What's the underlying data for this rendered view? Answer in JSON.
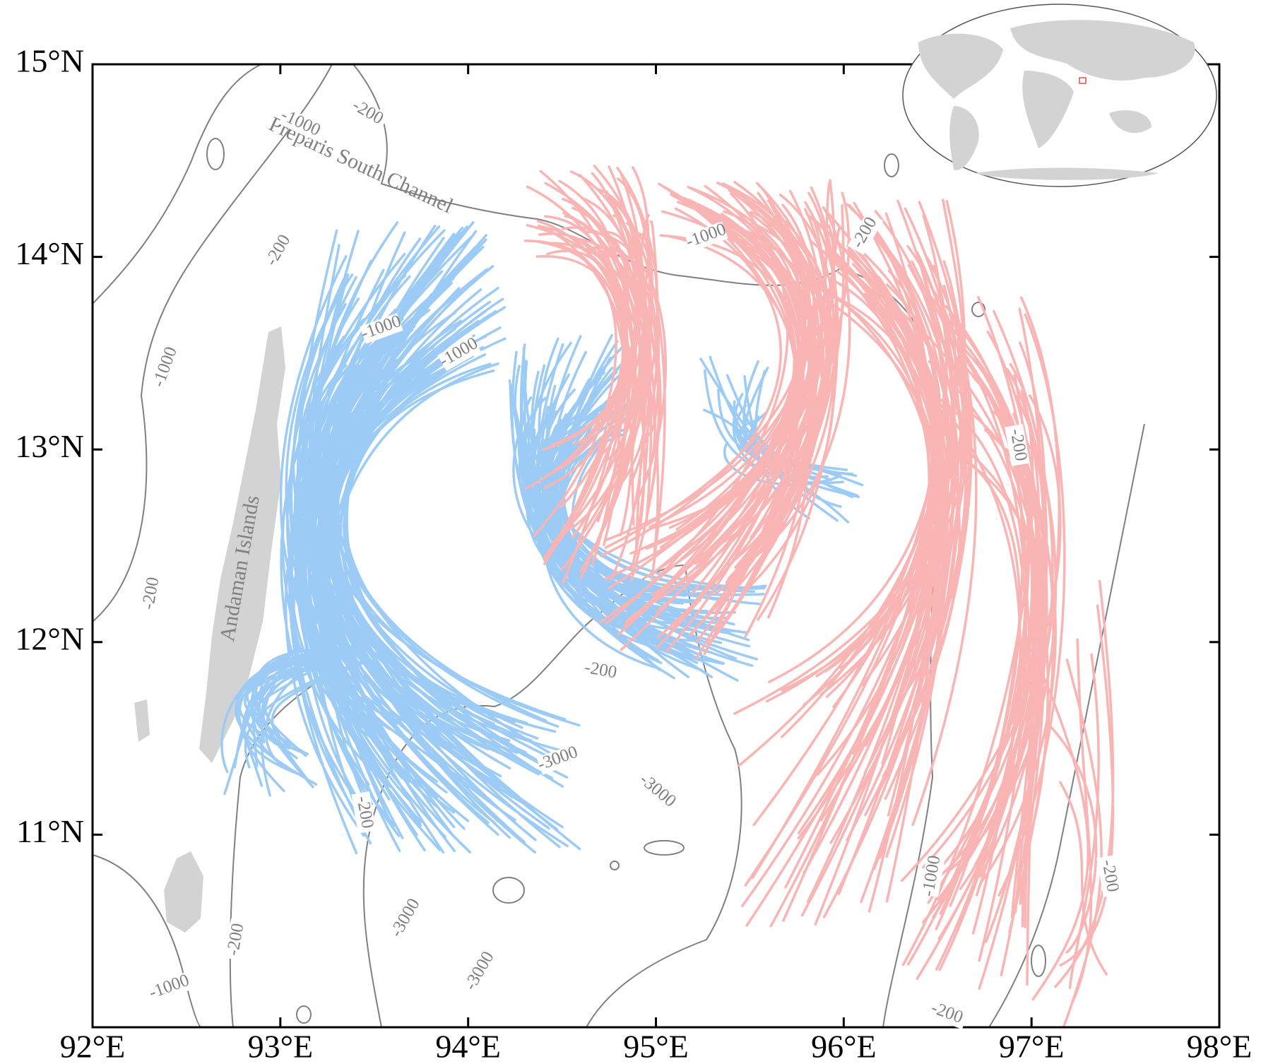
{
  "map": {
    "xticks": [
      "92°E",
      "93°E",
      "94°E",
      "95°E",
      "96°E",
      "97°E",
      "98°E"
    ],
    "yticks": [
      "15°N",
      "14°N",
      "13°N",
      "12°N",
      "11°N"
    ],
    "places": [
      "Preparis South Channel",
      "Andaman Islands"
    ],
    "contour_labels": [
      "-1000",
      "-200",
      "-200",
      "-1000",
      "-1000",
      "-200",
      "-1000",
      "-200",
      "-200",
      "-1000",
      "-3000",
      "-3000",
      "-200",
      "-3000",
      "-3000",
      "-200",
      "-1000",
      "-1000",
      "-200",
      "-200",
      "-200"
    ]
  }
}
